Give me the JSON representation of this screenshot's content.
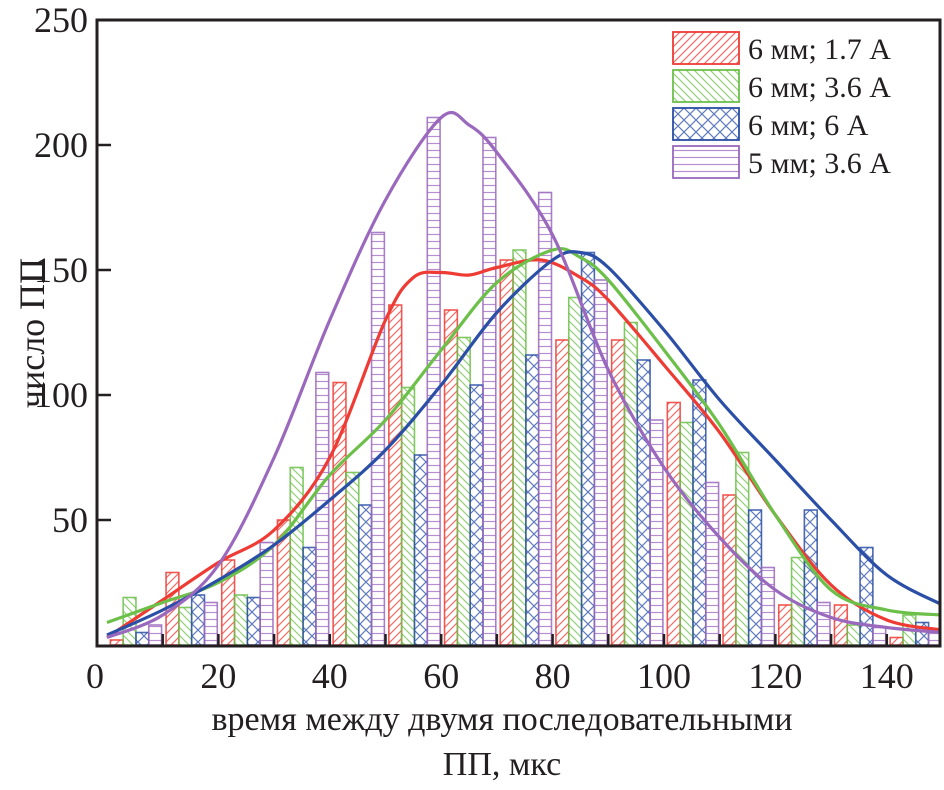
{
  "chart_data": {
    "type": "bar",
    "title": "",
    "xlabel_lines": [
      "время между двумя последовательными",
      "ПП, мкс"
    ],
    "ylabel": "число ПП",
    "xlim": [
      -2,
      150
    ],
    "ylim": [
      0,
      250
    ],
    "x_ticks": [
      0,
      20,
      40,
      60,
      80,
      100,
      120,
      140
    ],
    "y_ticks": [
      50,
      100,
      150,
      200,
      250
    ],
    "legend_position": "top-right",
    "bins": [
      0,
      10,
      20,
      30,
      40,
      50,
      60,
      70,
      80,
      90,
      100,
      110,
      120,
      130,
      140
    ],
    "series": [
      {
        "name": "6 мм; 1.7 А",
        "color": "#ee3b34",
        "pattern": "diagonal-right",
        "values": [
          2,
          29,
          34,
          50,
          105,
          136,
          134,
          154,
          122,
          122,
          97,
          60,
          16,
          16,
          3
        ],
        "fit": [
          [
            0,
            3
          ],
          [
            10,
            18
          ],
          [
            20,
            33
          ],
          [
            30,
            46
          ],
          [
            40,
            75
          ],
          [
            50,
            130
          ],
          [
            55,
            147
          ],
          [
            60,
            149
          ],
          [
            65,
            148
          ],
          [
            70,
            151
          ],
          [
            78,
            154
          ],
          [
            85,
            147
          ],
          [
            90,
            138
          ],
          [
            100,
            112
          ],
          [
            110,
            85
          ],
          [
            120,
            52
          ],
          [
            130,
            24
          ],
          [
            140,
            10
          ],
          [
            150,
            6
          ]
        ]
      },
      {
        "name": "6 мм; 3.6 А",
        "color": "#6cc04a",
        "pattern": "diagonal-left",
        "values": [
          19,
          15,
          20,
          71,
          69,
          103,
          123,
          158,
          139,
          129,
          89,
          77,
          35,
          8,
          12
        ],
        "fit": [
          [
            0,
            9
          ],
          [
            10,
            17
          ],
          [
            20,
            25
          ],
          [
            30,
            40
          ],
          [
            40,
            68
          ],
          [
            50,
            90
          ],
          [
            60,
            118
          ],
          [
            70,
            145
          ],
          [
            80,
            158
          ],
          [
            85,
            155
          ],
          [
            90,
            146
          ],
          [
            100,
            118
          ],
          [
            110,
            88
          ],
          [
            120,
            52
          ],
          [
            130,
            22
          ],
          [
            140,
            14
          ],
          [
            150,
            12
          ]
        ]
      },
      {
        "name": "6 мм; 6 А",
        "color": "#2b4fa6",
        "pattern": "crosshatch",
        "values": [
          5,
          20,
          19,
          39,
          56,
          76,
          104,
          116,
          157,
          114,
          106,
          54,
          54,
          39,
          9
        ],
        "fit": [
          [
            0,
            4
          ],
          [
            10,
            14
          ],
          [
            20,
            26
          ],
          [
            30,
            40
          ],
          [
            40,
            58
          ],
          [
            50,
            78
          ],
          [
            60,
            104
          ],
          [
            70,
            133
          ],
          [
            80,
            154
          ],
          [
            85,
            157
          ],
          [
            90,
            151
          ],
          [
            100,
            126
          ],
          [
            110,
            98
          ],
          [
            120,
            74
          ],
          [
            130,
            50
          ],
          [
            140,
            28
          ],
          [
            150,
            16
          ]
        ]
      },
      {
        "name": "5 мм; 3.6 А",
        "color": "#9a68bd",
        "pattern": "horizontal",
        "values": [
          8,
          17,
          41,
          109,
          165,
          211,
          203,
          181,
          146,
          90,
          65,
          31,
          17,
          7,
          6
        ],
        "fit": [
          [
            0,
            3
          ],
          [
            10,
            12
          ],
          [
            20,
            32
          ],
          [
            30,
            75
          ],
          [
            40,
            130
          ],
          [
            50,
            178
          ],
          [
            60,
            211
          ],
          [
            65,
            208
          ],
          [
            70,
            197
          ],
          [
            80,
            164
          ],
          [
            90,
            110
          ],
          [
            100,
            71
          ],
          [
            110,
            43
          ],
          [
            120,
            22
          ],
          [
            130,
            11
          ],
          [
            140,
            7
          ],
          [
            150,
            5
          ]
        ]
      }
    ]
  }
}
